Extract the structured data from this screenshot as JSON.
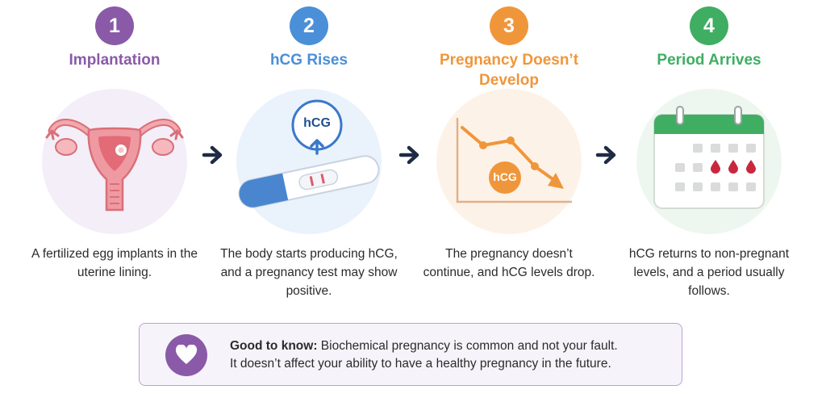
{
  "steps": [
    {
      "number": "1",
      "title": "Implantation",
      "color": "#8a5aa8",
      "description": "A fertilized egg implants in the uterine lining.",
      "icon": "uterus-icon"
    },
    {
      "number": "2",
      "title": "hCG Rises",
      "color": "#4a8fd8",
      "description": "The body starts producing hCG, and a pregnancy test may show positive.",
      "icon": "pregnancy-test-icon",
      "icon_label": "hCG"
    },
    {
      "number": "3",
      "title": "Pregnancy Doesn’t Develop",
      "color": "#f0963a",
      "description": "The pregnancy doesn’t continue, and hCG levels drop.",
      "icon": "declining-chart-icon",
      "icon_label": "hCG"
    },
    {
      "number": "4",
      "title": "Period Arrives",
      "color": "#3fae62",
      "description": "hCG returns to non-pregnant levels, and a period usually follows.",
      "icon": "calendar-icon"
    }
  ],
  "note": {
    "label": "Good to know:",
    "text_line1": "Biochemical pregnancy is common and not your fault.",
    "text_line2": "It doesn’t affect your ability to have a healthy pregnancy in the future.",
    "icon": "heart-icon",
    "accent": "#8a5aa8"
  },
  "arrow_icon": "arrow-right-icon"
}
